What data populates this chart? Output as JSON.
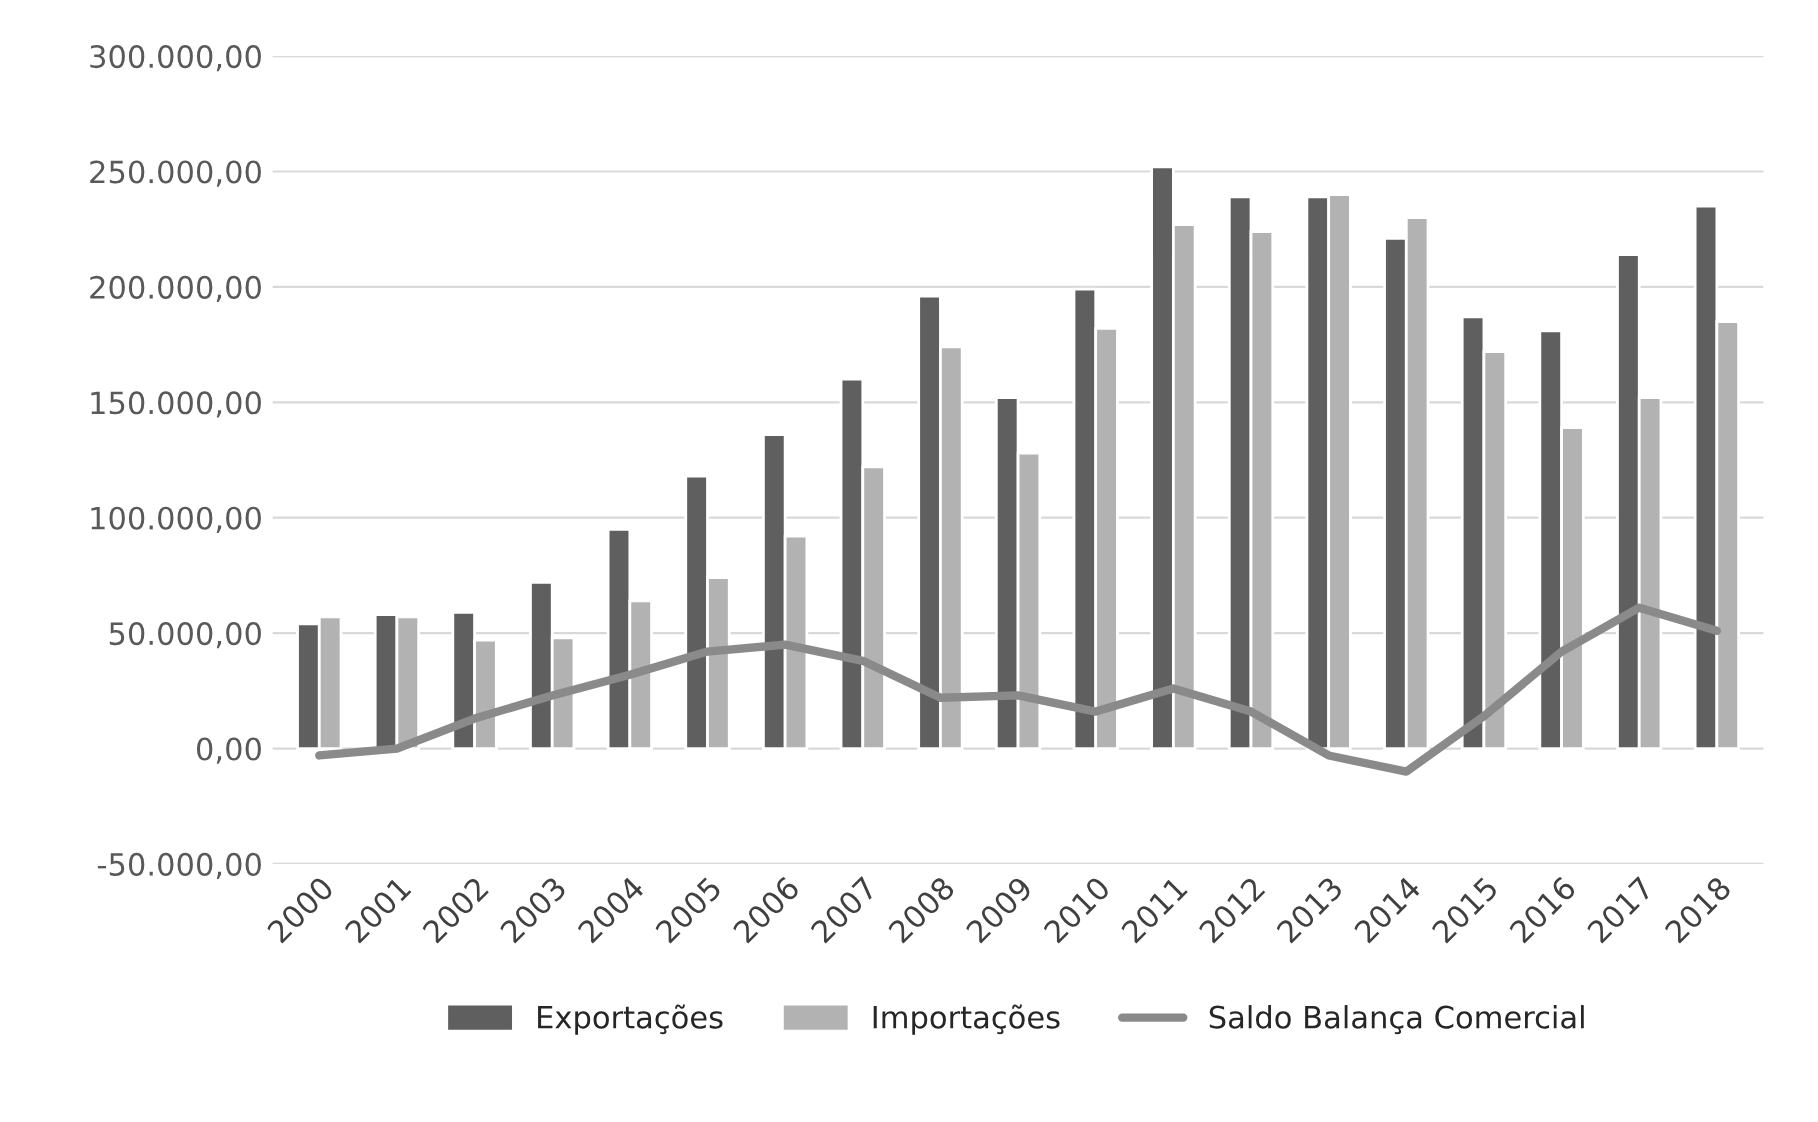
{
  "chart_data": {
    "type": "bar",
    "categories": [
      "2000",
      "2001",
      "2002",
      "2003",
      "2004",
      "2005",
      "2006",
      "2007",
      "2008",
      "2009",
      "2010",
      "2011",
      "2012",
      "2013",
      "2014",
      "2015",
      "2016",
      "2017",
      "2018"
    ],
    "series": [
      {
        "name": "Exportações",
        "color": "#5f5f5f",
        "values": [
          54000,
          58000,
          59000,
          72000,
          95000,
          118000,
          136000,
          160000,
          196000,
          152000,
          199000,
          252000,
          239000,
          239000,
          221000,
          187000,
          181000,
          214000,
          235000
        ]
      },
      {
        "name": "Importações",
        "color": "#b2b2b2",
        "values": [
          57000,
          57000,
          47000,
          48000,
          64000,
          74000,
          92000,
          122000,
          174000,
          128000,
          182000,
          227000,
          224000,
          240000,
          230000,
          172000,
          139000,
          152000,
          185000
        ]
      },
      {
        "name": "Saldo Balança Comercial",
        "type": "line",
        "color": "#8a8a8a",
        "values": [
          -3000,
          0,
          13000,
          23000,
          32000,
          42000,
          45000,
          38000,
          22000,
          23000,
          16000,
          26000,
          16000,
          -3000,
          -10000,
          14000,
          42000,
          61000,
          51000
        ]
      }
    ],
    "ylim": [
      -50000,
      300000
    ],
    "yticks": [
      {
        "value": -50000,
        "label": "-50.000,00"
      },
      {
        "value": 0,
        "label": "0,00"
      },
      {
        "value": 50000,
        "label": "50.000,00"
      },
      {
        "value": 100000,
        "label": "100.000,00"
      },
      {
        "value": 150000,
        "label": "150.000,00"
      },
      {
        "value": 200000,
        "label": "200.000,00"
      },
      {
        "value": 250000,
        "label": "250.000,00"
      },
      {
        "value": 300000,
        "label": "300.000,00"
      }
    ],
    "grid": "y",
    "legend": "bottom",
    "marker": "none",
    "line_style": "solid"
  }
}
